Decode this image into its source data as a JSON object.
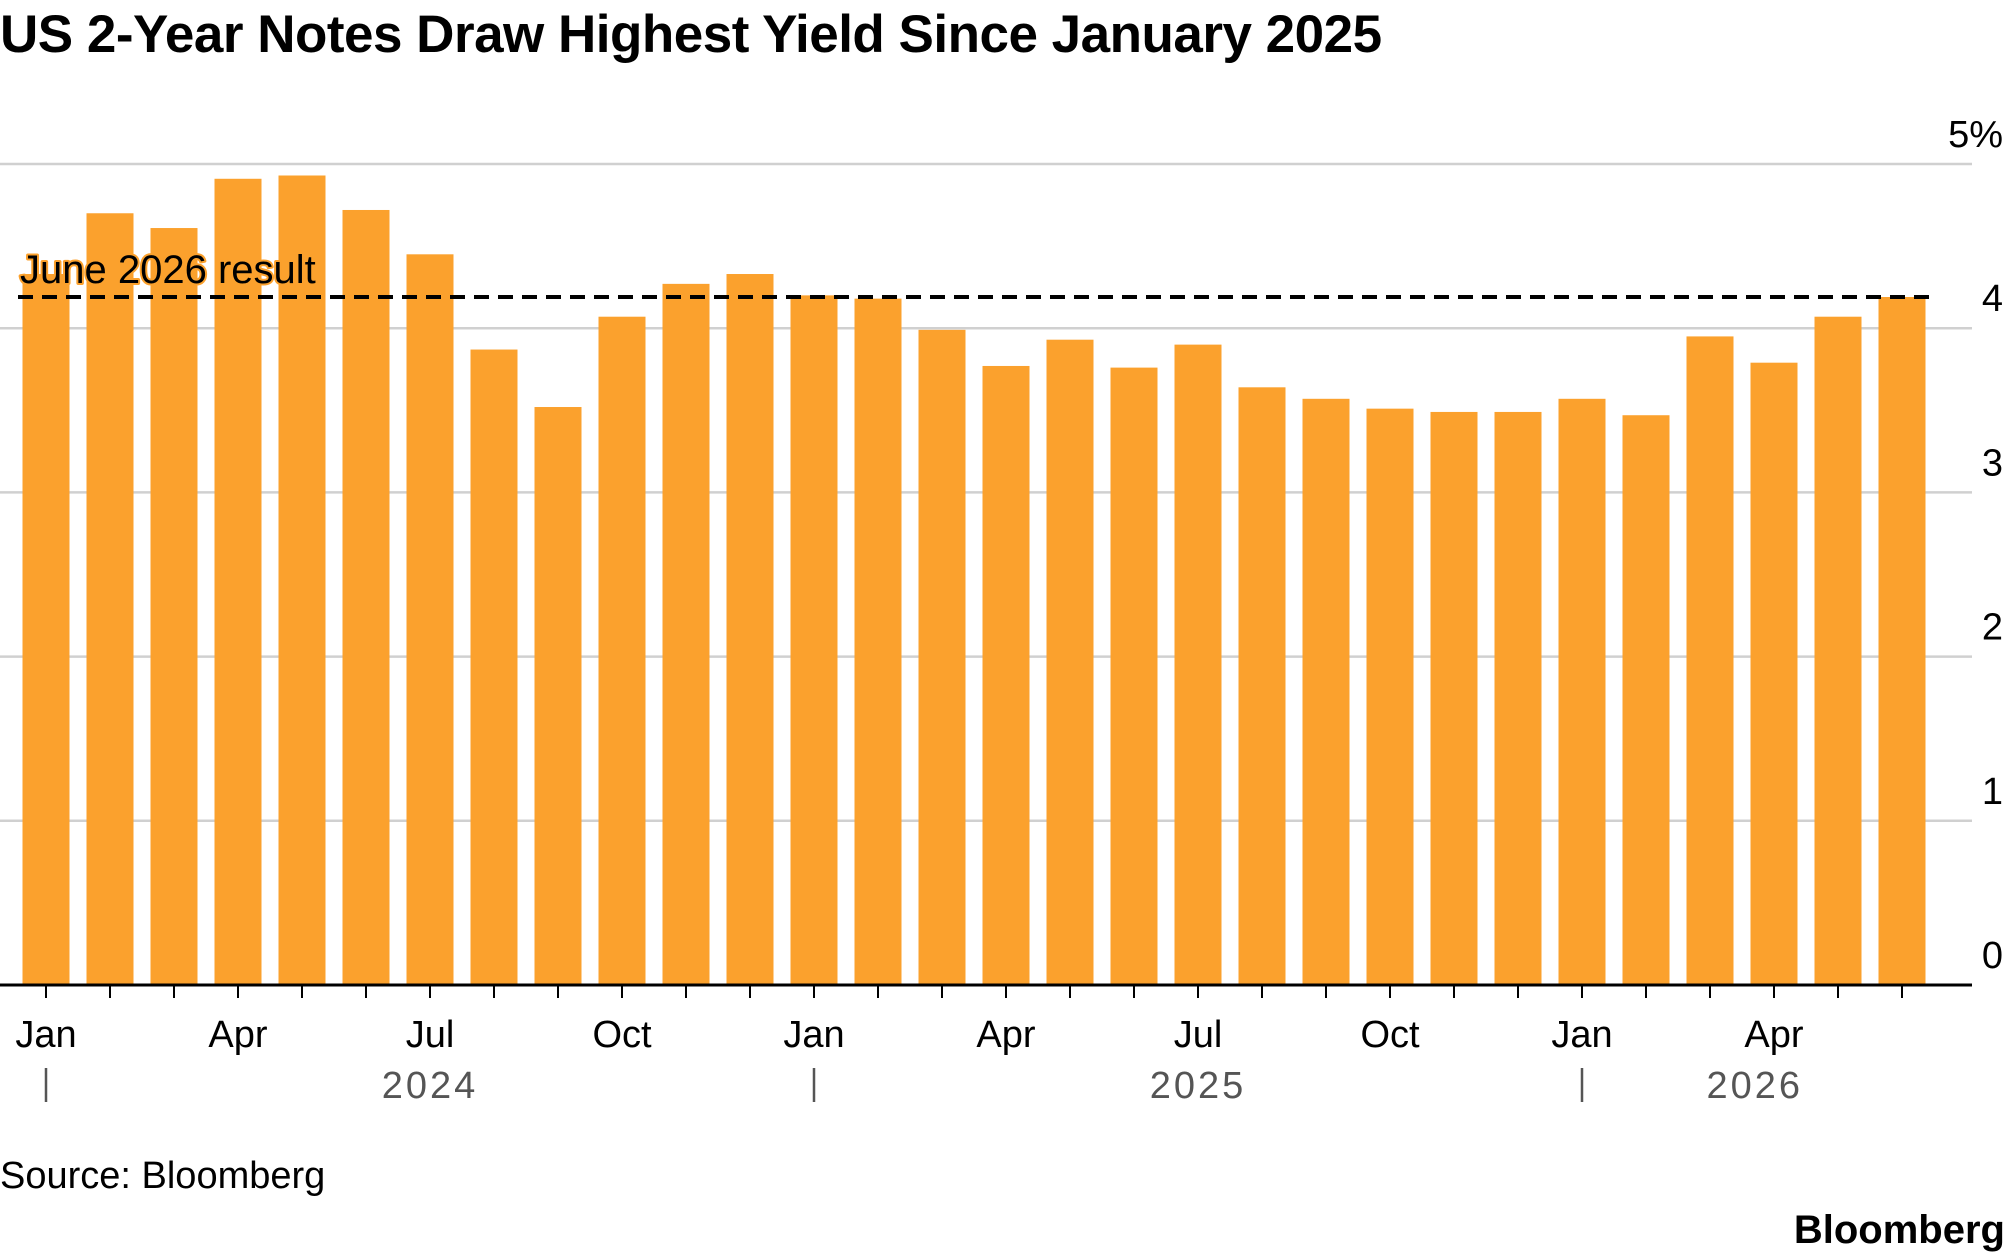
{
  "title": "US 2-Year Notes Draw Highest Yield Since January 2025",
  "source": "Source: Bloomberg",
  "brand": "Bloomberg",
  "colors": {
    "bar": "#FBA12D",
    "grid": "#D0D0D0",
    "axis": "#000000",
    "reference_line": "#000000",
    "year_label": "#555555"
  },
  "chart_data": {
    "type": "bar",
    "title": "US 2-Year Notes Draw Highest Yield Since January 2025",
    "xlabel": "",
    "ylabel": "",
    "ylim": [
      0,
      5
    ],
    "y_ticks": [
      "0",
      "1",
      "2",
      "3",
      "4",
      "5%"
    ],
    "y_axis_side": "right",
    "grid": true,
    "categories": [
      "2024-01",
      "2024-02",
      "2024-03",
      "2024-04",
      "2024-05",
      "2024-06",
      "2024-07",
      "2024-08",
      "2024-09",
      "2024-10",
      "2024-11",
      "2024-12",
      "2025-01",
      "2025-02",
      "2025-03",
      "2025-04",
      "2025-05",
      "2025-06",
      "2025-07",
      "2025-08",
      "2025-09",
      "2025-10",
      "2025-11",
      "2025-12",
      "2026-01",
      "2026-02",
      "2026-03",
      "2026-04",
      "2026-05",
      "2026-06"
    ],
    "values": [
      4.33,
      4.7,
      4.61,
      4.91,
      4.93,
      4.72,
      4.45,
      3.87,
      3.52,
      4.07,
      4.27,
      4.33,
      4.2,
      4.18,
      3.99,
      3.77,
      3.93,
      3.76,
      3.9,
      3.64,
      3.57,
      3.51,
      3.49,
      3.49,
      3.57,
      3.47,
      3.95,
      3.79,
      4.07,
      4.19
    ],
    "x_tick_labels": [
      {
        "index": 0,
        "label": "Jan"
      },
      {
        "index": 3,
        "label": "Apr"
      },
      {
        "index": 6,
        "label": "Jul"
      },
      {
        "index": 9,
        "label": "Oct"
      },
      {
        "index": 12,
        "label": "Jan"
      },
      {
        "index": 15,
        "label": "Apr"
      },
      {
        "index": 18,
        "label": "Jul"
      },
      {
        "index": 21,
        "label": "Oct"
      },
      {
        "index": 24,
        "label": "Jan"
      },
      {
        "index": 27,
        "label": "Apr"
      }
    ],
    "year_labels": [
      {
        "label": "2024",
        "index": 6,
        "divider_index": 0
      },
      {
        "label": "2025",
        "index": 18,
        "divider_index": 12
      },
      {
        "label": "2026",
        "index": 26.7,
        "divider_index": 24
      }
    ],
    "reference_line": {
      "value": 4.19,
      "label": "June 2026 result",
      "style": "dashed"
    }
  }
}
